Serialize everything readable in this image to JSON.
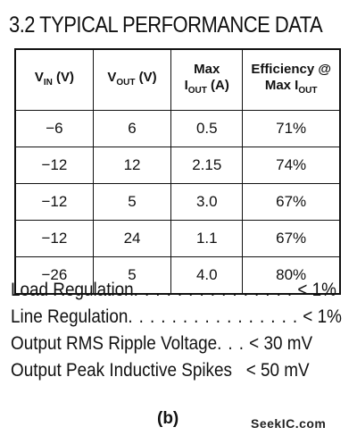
{
  "title": "3.2 TYPICAL PERFORMANCE DATA",
  "table": {
    "headers": {
      "vin": {
        "main": "V",
        "sub": "IN",
        "unit": " (V)"
      },
      "vout": {
        "main": "V",
        "sub": "OUT",
        "unit": " (V)"
      },
      "iout": {
        "line1": "Max",
        "main": "I",
        "sub": "OUT",
        "unit": " (A)"
      },
      "eff": {
        "line1": "Efficiency @",
        "line2main": "Max I",
        "sub": "OUT"
      }
    },
    "rows": [
      {
        "vin": "−6",
        "vout": "6",
        "iout": "0.5",
        "eff": "71%"
      },
      {
        "vin": "−12",
        "vout": "12",
        "iout": "2.15",
        "eff": "74%"
      },
      {
        "vin": "−12",
        "vout": "5",
        "iout": "3.0",
        "eff": "67%"
      },
      {
        "vin": "−12",
        "vout": "24",
        "iout": "1.1",
        "eff": "67%"
      },
      {
        "vin": "−26",
        "vout": "5",
        "iout": "4.0",
        "eff": "80%"
      }
    ]
  },
  "specs": [
    {
      "label": "Load Regulation",
      "dots": " . . . . . . . . . . . . . . .",
      "value": "< 1%"
    },
    {
      "label": "Line Regulation",
      "dots": " . . . . . . . . . . . . . . . .",
      "value": "< 1%"
    },
    {
      "label": "Output RMS Ripple Voltage",
      "dots": " . . .",
      "value": "< 30 mV"
    },
    {
      "label": "Output Peak Inductive Spikes",
      "dots": "",
      "value": "< 50 mV"
    }
  ],
  "caption": "(b)",
  "watermark": "SeekIC.com"
}
